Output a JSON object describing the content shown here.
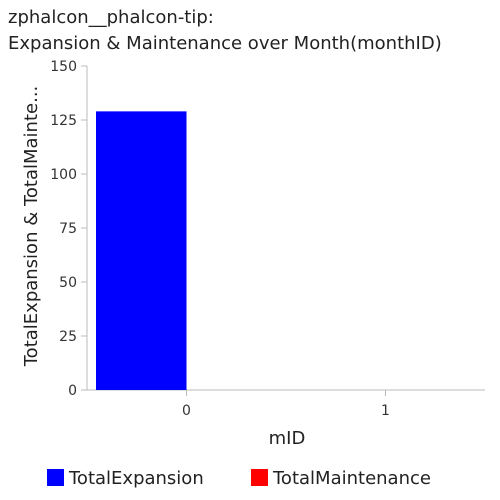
{
  "chart_data": {
    "type": "bar",
    "title_line1": "zphalcon__phalcon-tip:",
    "title_line2": "Expansion & Maintenance over Month(monthID)",
    "xlabel": "mID",
    "ylabel": "TotalExpansion & TotalMainte...",
    "categories": [
      "0",
      "1"
    ],
    "ylim": [
      0,
      150
    ],
    "yticks": [
      0,
      25,
      50,
      75,
      100,
      125,
      150
    ],
    "series": [
      {
        "name": "TotalExpansion",
        "color": "#0000ff",
        "values": [
          129,
          0
        ]
      },
      {
        "name": "TotalMaintenance",
        "color": "#ff0000",
        "values": [
          0,
          0
        ]
      }
    ],
    "legend_position": "bottom",
    "grid": false
  }
}
